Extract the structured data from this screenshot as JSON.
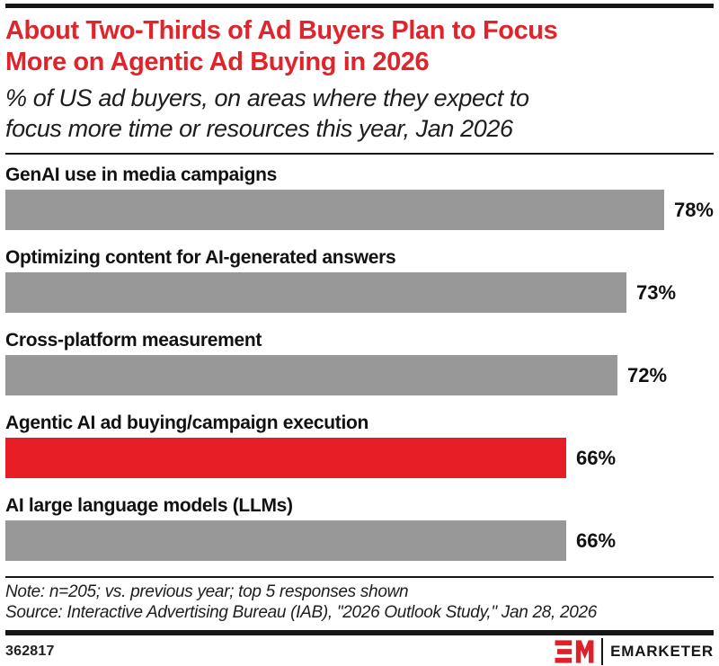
{
  "header": {
    "title_lines": [
      "About Two-Thirds of Ad Buyers Plan to Focus",
      "More on Agentic Ad Buying in 2026"
    ],
    "subtitle_lines": [
      "% of US ad buyers, on areas where they expect to",
      "focus more time or resources this year, Jan 2026"
    ]
  },
  "chart_data": {
    "type": "bar",
    "orientation": "horizontal",
    "title": "About Two-Thirds of Ad Buyers Plan to Focus More on Agentic Ad Buying in 2026",
    "subtitle": "% of US ad buyers, on areas where they expect to focus more time or resources this year, Jan 2026",
    "categories": [
      "GenAI use in media campaigns",
      "Optimizing content for AI-generated answers",
      "Cross-platform measurement",
      "Agentic AI ad buying/campaign execution",
      "AI large language models (LLMs)"
    ],
    "values": [
      78,
      73,
      72,
      66,
      66
    ],
    "value_suffix": "%",
    "xlim": [
      0,
      100
    ],
    "grid": false,
    "legend": false,
    "highlight_category": "Agentic AI ad buying/campaign execution",
    "rows": [
      {
        "label": "GenAI use in media campaigns",
        "value": 78,
        "display_value": "78%",
        "color": "#989898"
      },
      {
        "label": "Optimizing content for AI-generated answers",
        "value": 73,
        "display_value": "73%",
        "color": "#989898"
      },
      {
        "label": "Cross-platform measurement",
        "value": 72,
        "display_value": "72%",
        "color": "#989898"
      },
      {
        "label": "Agentic AI ad buying/campaign execution",
        "value": 66,
        "display_value": "66%",
        "color": "#e81e26"
      },
      {
        "label": "AI large language models (LLMs)",
        "value": 66,
        "display_value": "66%",
        "color": "#989898"
      }
    ]
  },
  "footnote": {
    "note": "Note: n=205; vs. previous year; top 5 responses shown",
    "source": "Source: Interactive Advertising Bureau (IAB), \"2026 Outlook Study,\" Jan 28, 2026"
  },
  "footer": {
    "chart_number": "362817",
    "brand_name": "EMARKETER"
  },
  "colors": {
    "title_red": "#e0242c",
    "bar_red": "#e81e26",
    "bar_gray": "#989898",
    "rule_black": "#161616"
  }
}
